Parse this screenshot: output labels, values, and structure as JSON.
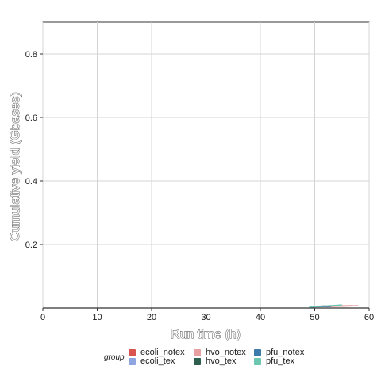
{
  "chart_data": {
    "type": "line",
    "title": "",
    "xlabel": "Run time (h)",
    "ylabel": "Cumulative yield (Gbases)",
    "xlim": [
      0,
      60
    ],
    "ylim": [
      0,
      0.9
    ],
    "xticks": [
      0,
      10,
      20,
      30,
      40,
      50,
      60
    ],
    "xtick_labels": [
      "0",
      "10",
      "20",
      "30",
      "40",
      "50",
      "60"
    ],
    "yticks": [
      0.2,
      0.4,
      0.6,
      0.8
    ],
    "ytick_labels": [
      "0.2",
      "0.4",
      "0.6",
      "0.8"
    ],
    "grid": true,
    "legend_position": "bottom",
    "legend_title": "group",
    "series": [
      {
        "name": "ecoli_notex",
        "color": "#d9534f",
        "x": [
          49,
          51,
          53,
          55,
          57
        ],
        "y": [
          0.001,
          0.002,
          0.003,
          0.004,
          0.005
        ]
      },
      {
        "name": "ecoli_tex",
        "color": "#8fa5e0",
        "x": [
          49,
          51,
          53,
          55
        ],
        "y": [
          0.001,
          0.002,
          0.003,
          0.004
        ]
      },
      {
        "name": "hvo_notex",
        "color": "#e8a0a0",
        "x": [
          50,
          52,
          54,
          56,
          58
        ],
        "y": [
          0.001,
          0.002,
          0.003,
          0.004,
          0.005
        ]
      },
      {
        "name": "hvo_tex",
        "color": "#2e5e4e",
        "x": [
          49,
          50,
          51,
          52
        ],
        "y": [
          0.001,
          0.002,
          0.003,
          0.004
        ]
      },
      {
        "name": "pfu_notex",
        "color": "#3d7bab",
        "x": [
          49,
          51,
          53
        ],
        "y": [
          0.001,
          0.002,
          0.003
        ]
      },
      {
        "name": "pfu_tex",
        "color": "#6cc7b0",
        "x": [
          49,
          51,
          53,
          55
        ],
        "y": [
          0.001,
          0.003,
          0.005,
          0.007
        ]
      }
    ]
  }
}
